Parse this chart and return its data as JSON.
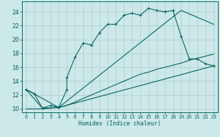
{
  "title": "",
  "xlabel": "Humidex (Indice chaleur)",
  "xlim": [
    -0.5,
    23.5
  ],
  "ylim": [
    9.5,
    25.5
  ],
  "xticks": [
    0,
    1,
    2,
    3,
    4,
    5,
    6,
    7,
    8,
    9,
    10,
    11,
    12,
    13,
    14,
    15,
    16,
    17,
    18,
    19,
    20,
    21,
    22,
    23
  ],
  "yticks": [
    10,
    12,
    14,
    16,
    18,
    20,
    22,
    24
  ],
  "bg_color": "#cce8e8",
  "grid_color": "#aacccc",
  "line_color": "#006060",
  "line1_x": [
    0,
    1,
    2,
    3,
    4,
    5,
    5,
    6,
    7,
    8,
    9,
    10,
    11,
    12,
    13,
    14,
    15,
    16,
    17,
    18,
    19,
    20,
    21,
    22,
    23
  ],
  "line1_y": [
    12.8,
    12.2,
    10.1,
    10.5,
    10.2,
    12.8,
    14.5,
    17.5,
    19.5,
    19.2,
    21.0,
    22.2,
    22.2,
    23.5,
    23.8,
    23.5,
    24.5,
    24.2,
    24.0,
    24.2,
    20.5,
    17.2,
    17.2,
    16.5,
    16.2
  ],
  "line2_x": [
    0,
    1,
    2,
    3,
    4,
    5,
    6,
    7,
    8,
    9,
    10,
    11,
    12,
    13,
    14,
    15,
    16,
    17,
    18,
    19,
    20,
    21,
    22,
    23
  ],
  "line2_y": [
    10.0,
    10.0,
    10.0,
    10.1,
    10.2,
    10.5,
    11.0,
    11.5,
    12.0,
    12.5,
    13.0,
    13.5,
    14.0,
    14.5,
    15.0,
    15.3,
    15.7,
    16.0,
    16.3,
    16.6,
    17.0,
    17.3,
    17.6,
    17.9
  ],
  "line3_x": [
    0,
    2,
    4,
    23
  ],
  "line3_y": [
    12.8,
    10.1,
    10.2,
    16.2
  ],
  "line4_x": [
    0,
    4,
    19,
    23
  ],
  "line4_y": [
    12.8,
    10.2,
    24.2,
    22.2
  ]
}
